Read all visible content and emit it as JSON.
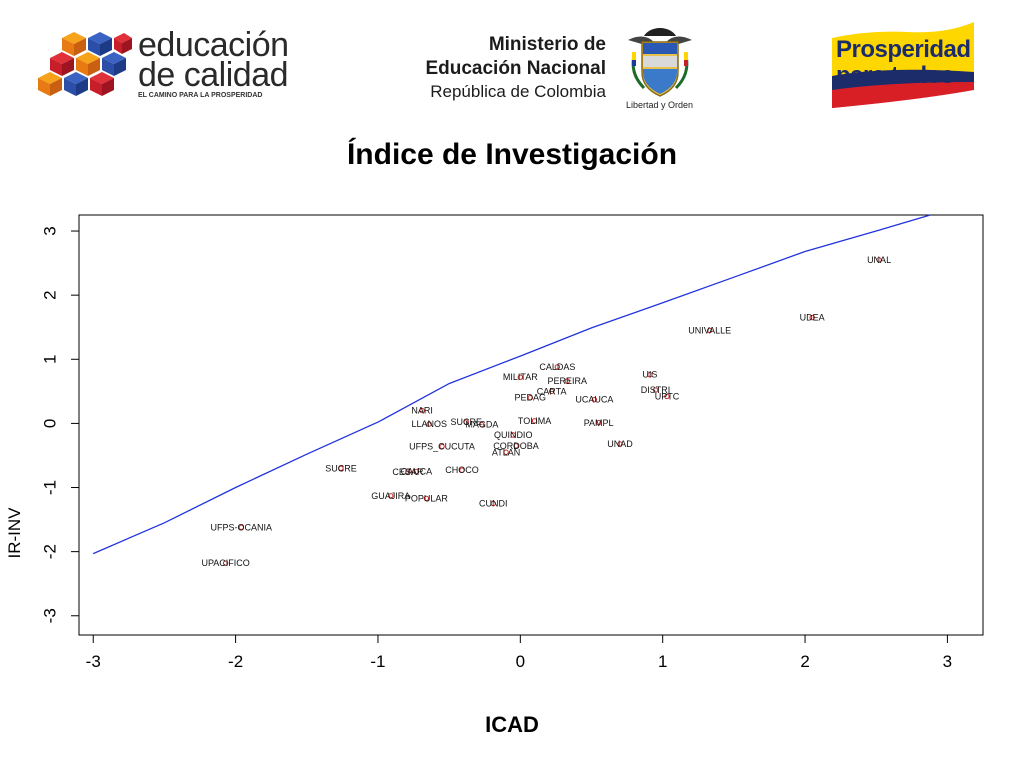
{
  "header": {
    "edu_logo_line1": "educación",
    "edu_logo_line2": "de calidad",
    "edu_logo_tagline": "EL CAMINO PARA LA PROSPERIDAD",
    "ministry_line1": "Ministerio de",
    "ministry_line2": "Educación Nacional",
    "ministry_line3": "República de Colombia",
    "shield_motto": "Libertad y Orden",
    "prosperity_line1": "Prosperidad",
    "prosperity_line2": "para todos"
  },
  "colors": {
    "curve": "#2233dd",
    "point": "#cc2222",
    "text": "#000000",
    "prosperity_yellow": "#ffd700",
    "edu_orange": "#f07a18",
    "edu_blue": "#2b4ea8",
    "edu_red": "#c81e2a"
  },
  "chart_data": {
    "type": "scatter",
    "title": "Índice de Investigación",
    "xlabel": "ICAD",
    "ylabel": "IR-INV",
    "xlim": [
      -3.1,
      3.25
    ],
    "ylim": [
      -3.3,
      3.25
    ],
    "xticks": [
      -3,
      -2,
      -1,
      0,
      1,
      2,
      3
    ],
    "yticks": [
      -3,
      -2,
      -1,
      0,
      1,
      2,
      3
    ],
    "grid": false,
    "points": [
      {
        "label": "UNAL",
        "x": 2.52,
        "y": 2.55
      },
      {
        "label": "UDEA",
        "x": 2.05,
        "y": 1.65
      },
      {
        "label": "UNIVALLE",
        "x": 1.33,
        "y": 1.45
      },
      {
        "label": "CALDAS",
        "x": 0.26,
        "y": 0.88
      },
      {
        "label": "MILITAR",
        "x": 0.0,
        "y": 0.72
      },
      {
        "label": "PEREIRA",
        "x": 0.33,
        "y": 0.66
      },
      {
        "label": "CARTA",
        "x": 0.22,
        "y": 0.5
      },
      {
        "label": "PEDAG",
        "x": 0.07,
        "y": 0.4
      },
      {
        "label": "UIS",
        "x": 0.91,
        "y": 0.76
      },
      {
        "label": "DISTRI",
        "x": 0.95,
        "y": 0.52
      },
      {
        "label": "UPTC",
        "x": 1.03,
        "y": 0.42
      },
      {
        "label": "UCAUCA",
        "x": 0.52,
        "y": 0.37
      },
      {
        "label": "NARI",
        "x": -0.69,
        "y": 0.2
      },
      {
        "label": "LLANOS",
        "x": -0.64,
        "y": -0.01
      },
      {
        "label": "SUCRE",
        "x": -0.38,
        "y": 0.02
      },
      {
        "label": "MAGDA",
        "x": -0.27,
        "y": -0.02
      },
      {
        "label": "TOLIMA",
        "x": 0.1,
        "y": 0.04
      },
      {
        "label": "PAMPL",
        "x": 0.55,
        "y": 0.01
      },
      {
        "label": "QUINDIO",
        "x": -0.05,
        "y": -0.18
      },
      {
        "label": "CORDOBA",
        "x": -0.03,
        "y": -0.35
      },
      {
        "label": "ATLAN",
        "x": -0.1,
        "y": -0.45
      },
      {
        "label": "UFPS_CUCUTA",
        "x": -0.55,
        "y": -0.36
      },
      {
        "label": "UNAD",
        "x": 0.7,
        "y": -0.32
      },
      {
        "label": "SUCRE",
        "x": -1.26,
        "y": -0.7
      },
      {
        "label": "CESAR",
        "x": -0.79,
        "y": -0.76
      },
      {
        "label": "CAUCA",
        "x": -0.73,
        "y": -0.75
      },
      {
        "label": "CHOCO",
        "x": -0.41,
        "y": -0.73
      },
      {
        "label": "GUAJIRA",
        "x": -0.91,
        "y": -1.13
      },
      {
        "label": "POPULAR",
        "x": -0.66,
        "y": -1.17
      },
      {
        "label": "CUNDI",
        "x": -0.19,
        "y": -1.25
      },
      {
        "label": "UFPS-OCANIA",
        "x": -1.96,
        "y": -1.62
      },
      {
        "label": "UPACIFICO",
        "x": -2.07,
        "y": -2.18
      }
    ],
    "curve": {
      "x": [
        -3.0,
        -2.5,
        -2.0,
        -1.5,
        -1.0,
        -0.5,
        0.0,
        0.5,
        1.0,
        1.5,
        2.0,
        2.5,
        2.88
      ],
      "y": [
        -2.03,
        -1.55,
        -1.0,
        -0.48,
        0.02,
        0.62,
        1.05,
        1.49,
        1.88,
        2.28,
        2.68,
        3.0,
        3.25
      ]
    }
  }
}
